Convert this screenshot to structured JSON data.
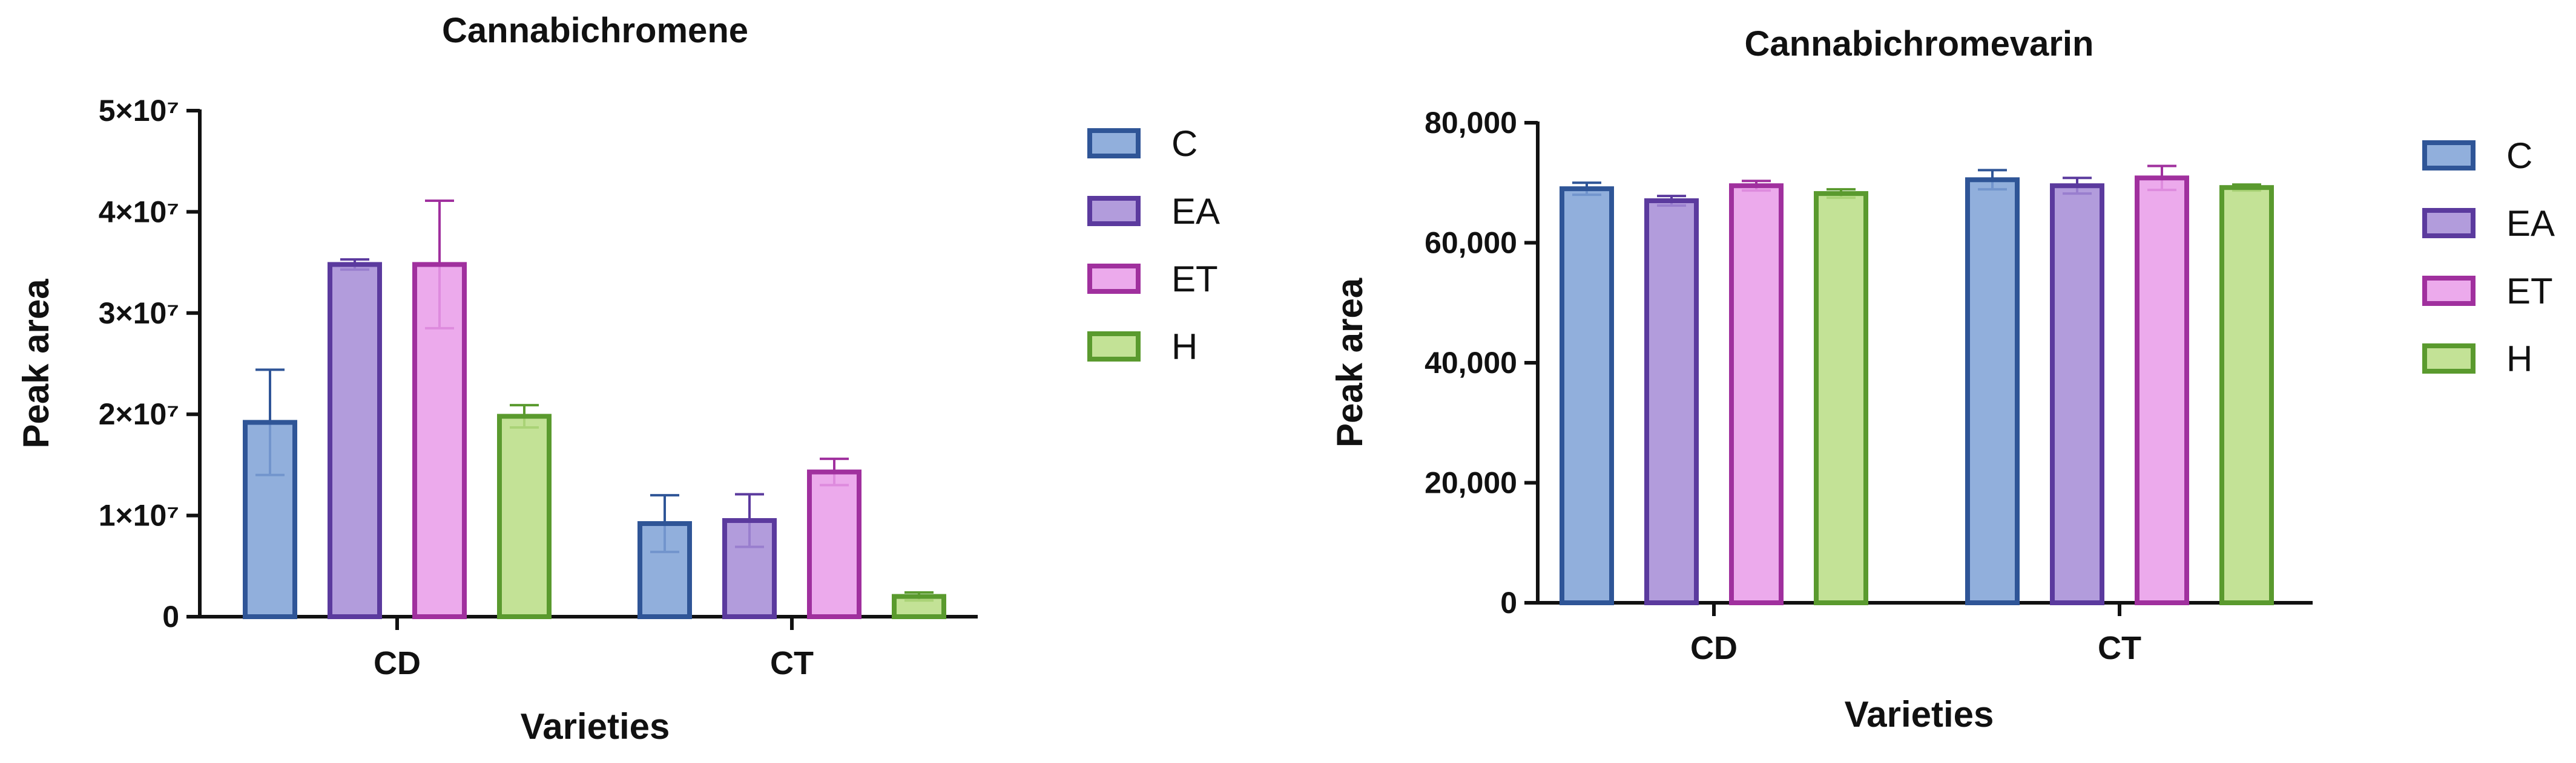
{
  "chart_data": [
    {
      "type": "bar",
      "title": "Cannabichromene",
      "xlabel": "Varieties",
      "ylabel": "Peak area",
      "categories": [
        "CD",
        "CT"
      ],
      "ylim": [
        0,
        50000000
      ],
      "yticks": [
        0,
        10000000,
        20000000,
        30000000,
        40000000,
        50000000
      ],
      "ytick_labels": [
        "0",
        "1×10⁷",
        "2×10⁷",
        "3×10⁷",
        "4×10⁷",
        "5×10⁷"
      ],
      "series": [
        {
          "name": "C",
          "values": [
            19200000,
            9200000
          ],
          "errors": [
            5200000,
            2800000
          ],
          "fill": "#7ea1d6",
          "stroke": "#2f5597"
        },
        {
          "name": "EA",
          "values": [
            34800000,
            9500000
          ],
          "errors": [
            500000,
            2600000
          ],
          "fill": "#a48bd6",
          "stroke": "#5b3a9e"
        },
        {
          "name": "ET",
          "values": [
            34800000,
            14300000
          ],
          "errors": [
            6300000,
            1300000
          ],
          "fill": "#e99be9",
          "stroke": "#a0309e"
        },
        {
          "name": "H",
          "values": [
            19800000,
            2000000
          ],
          "errors": [
            1100000,
            400000
          ],
          "fill": "#b9dd84",
          "stroke": "#5a9a2e"
        }
      ],
      "legend": "right",
      "grid": false
    },
    {
      "type": "bar",
      "title": "Cannabichromevarin",
      "xlabel": "Varieties",
      "ylabel": "Peak area",
      "categories": [
        "CD",
        "CT"
      ],
      "ylim": [
        0,
        80000
      ],
      "yticks": [
        0,
        20000,
        40000,
        60000,
        80000
      ],
      "ytick_labels": [
        "0",
        "20,000",
        "40,000",
        "60,000",
        "80,000"
      ],
      "series": [
        {
          "name": "C",
          "values": [
            69000,
            70500
          ],
          "errors": [
            1000,
            1600
          ],
          "fill": "#7ea1d6",
          "stroke": "#2f5597"
        },
        {
          "name": "EA",
          "values": [
            67000,
            69500
          ],
          "errors": [
            800,
            1300
          ],
          "fill": "#a48bd6",
          "stroke": "#5b3a9e"
        },
        {
          "name": "ET",
          "values": [
            69500,
            70800
          ],
          "errors": [
            800,
            2000
          ],
          "fill": "#e99be9",
          "stroke": "#a0309e"
        },
        {
          "name": "H",
          "values": [
            68200,
            69200
          ],
          "errors": [
            700,
            500
          ],
          "fill": "#b9dd84",
          "stroke": "#5a9a2e"
        }
      ],
      "legend": "right",
      "grid": false
    }
  ]
}
